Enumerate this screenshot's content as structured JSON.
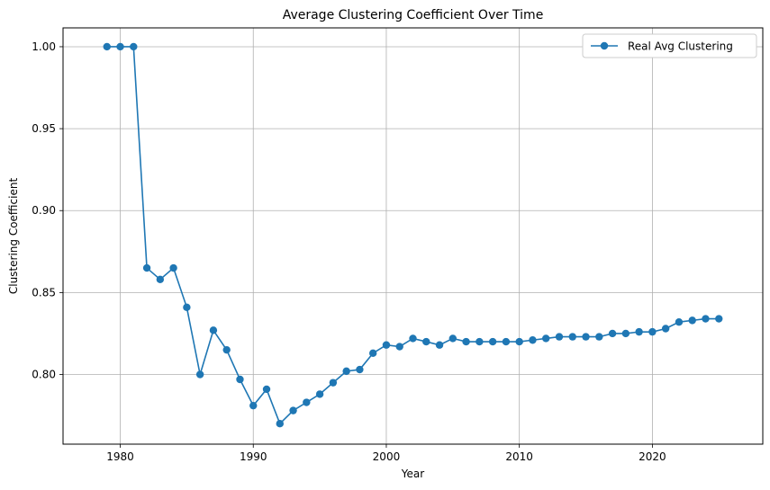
{
  "chart_data": {
    "type": "line",
    "title": "Average Clustering Coefficient Over Time",
    "xlabel": "Year",
    "ylabel": "Clustering Coefficient",
    "xlim": [
      1975.7,
      2028.3
    ],
    "ylim": [
      0.7575,
      1.0115
    ],
    "xticks": [
      1980,
      1990,
      2000,
      2010,
      2020
    ],
    "xtick_labels": [
      "1980",
      "1990",
      "2000",
      "2010",
      "2020"
    ],
    "yticks": [
      0.8,
      0.85,
      0.9,
      0.95,
      1.0
    ],
    "ytick_labels": [
      "0.80",
      "0.85",
      "0.90",
      "0.95",
      "1.00"
    ],
    "grid": true,
    "legend_position": "top-right",
    "color": "#1f77b4",
    "series": [
      {
        "name": "Real Avg Clustering",
        "x": [
          1979,
          1980,
          1981,
          1982,
          1983,
          1984,
          1985,
          1986,
          1987,
          1988,
          1989,
          1990,
          1991,
          1992,
          1993,
          1994,
          1995,
          1996,
          1997,
          1998,
          1999,
          2000,
          2001,
          2002,
          2003,
          2004,
          2005,
          2006,
          2007,
          2008,
          2009,
          2010,
          2011,
          2012,
          2013,
          2014,
          2015,
          2016,
          2017,
          2018,
          2019,
          2020,
          2021,
          2022,
          2023,
          2024,
          2025
        ],
        "y": [
          1.0,
          1.0,
          1.0,
          0.865,
          0.858,
          0.865,
          0.841,
          0.8,
          0.827,
          0.815,
          0.797,
          0.781,
          0.791,
          0.77,
          0.778,
          0.783,
          0.788,
          0.795,
          0.802,
          0.803,
          0.813,
          0.818,
          0.817,
          0.822,
          0.82,
          0.818,
          0.822,
          0.82,
          0.82,
          0.82,
          0.82,
          0.82,
          0.821,
          0.822,
          0.823,
          0.823,
          0.823,
          0.823,
          0.825,
          0.825,
          0.826,
          0.826,
          0.828,
          0.832,
          0.833,
          0.834,
          0.834
        ]
      }
    ]
  }
}
